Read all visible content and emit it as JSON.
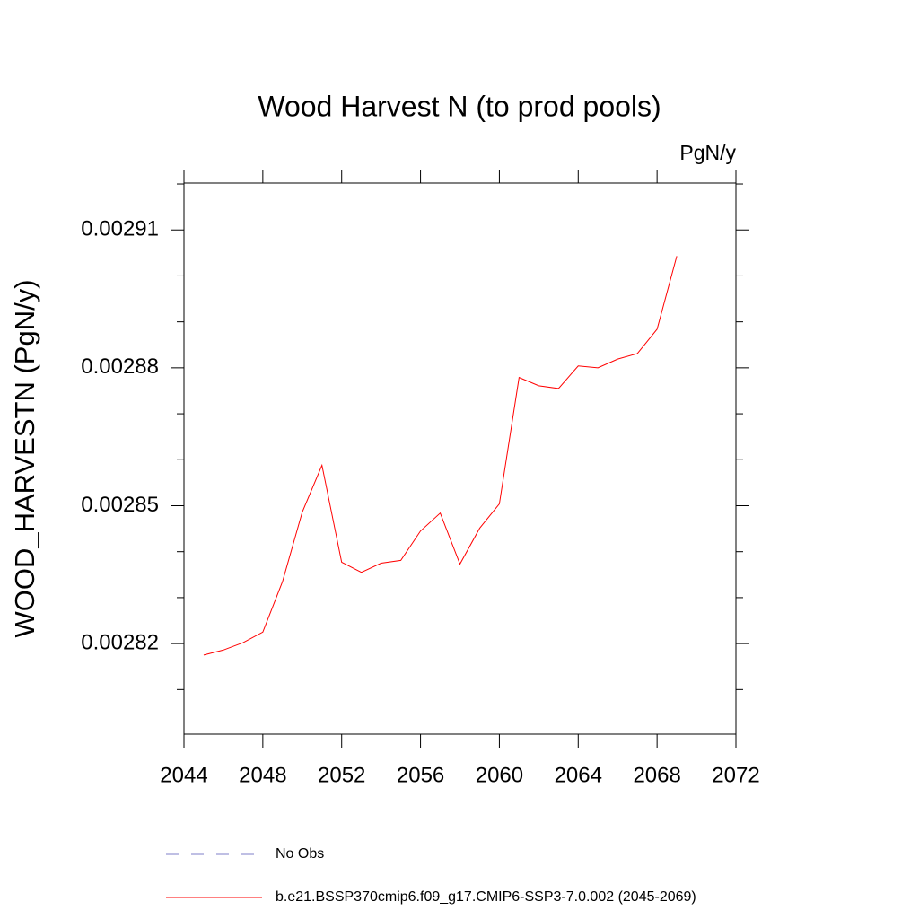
{
  "chart_data": {
    "type": "line",
    "title": "Wood Harvest N (to prod pools)",
    "units": "PgN/y",
    "y_label": "WOOD_HARVESTN  (PgN/y)",
    "x": [
      2045,
      2046,
      2047,
      2048,
      2049,
      2050,
      2051,
      2052,
      2053,
      2054,
      2055,
      2056,
      2057,
      2058,
      2059,
      2060,
      2061,
      2062,
      2063,
      2064,
      2065,
      2066,
      2067,
      2068,
      2069
    ],
    "series": [
      {
        "name": "b.e21.BSSP370cmip6.f09_g17.CMIP6-SSP3-7.0.002 (2045-2069)",
        "color": "#ff0000",
        "values": [
          0.0028175,
          0.0028186,
          0.0028202,
          0.0028225,
          0.0028335,
          0.0028486,
          0.0028588,
          0.0028377,
          0.0028355,
          0.0028375,
          0.0028381,
          0.0028445,
          0.0028484,
          0.0028373,
          0.0028451,
          0.0028504,
          0.0028779,
          0.0028761,
          0.0028755,
          0.0028804,
          0.00288,
          0.0028819,
          0.0028831,
          0.0028884,
          0.0029043
        ]
      }
    ],
    "legend_extra": [
      {
        "name": "No Obs",
        "color": "#7f7fc8",
        "dash": true
      }
    ],
    "xlim": [
      2044,
      2072
    ],
    "xticks": [
      2044,
      2048,
      2052,
      2056,
      2060,
      2064,
      2068,
      2072
    ],
    "ylim": [
      0.0028003,
      0.0029202
    ],
    "yticks": [
      0.00282,
      0.00285,
      0.00288,
      0.00291
    ],
    "yminor_ticks": [
      0.00281,
      0.00283,
      0.00284,
      0.00286,
      0.00287,
      0.00289,
      0.0029,
      0.00292
    ]
  }
}
